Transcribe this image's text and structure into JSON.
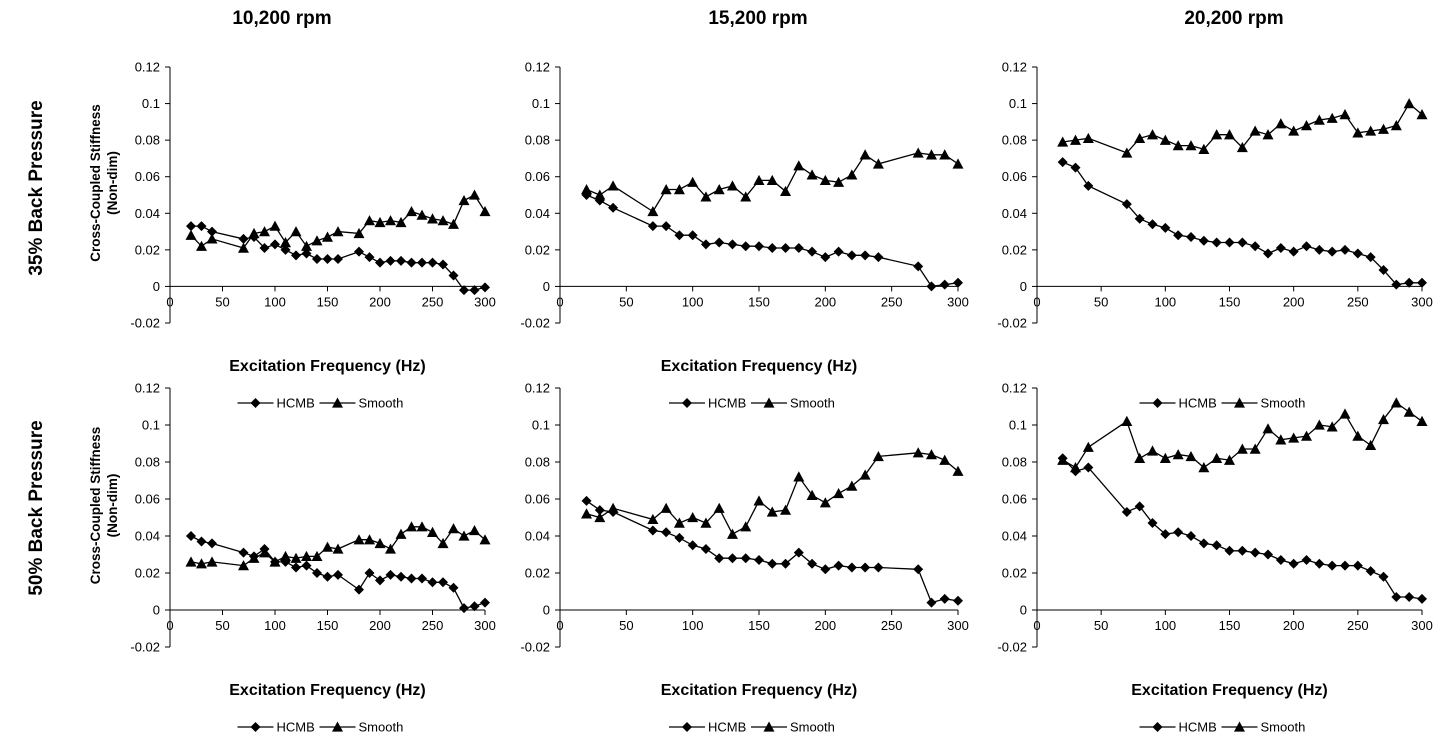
{
  "figure": {
    "column_titles": [
      "10,200 rpm",
      "15,200 rpm",
      "20,200 rpm"
    ],
    "row_titles": [
      "35% Back Pressure",
      "50% Back Pressure"
    ],
    "ylabel_line1": "Cross-Coupled Stiffness",
    "ylabel_line2": "(Non-dim)",
    "xlabel": "Excitation Frequency (Hz)"
  },
  "chart_data": [
    {
      "type": "line",
      "row": "35% Back Pressure",
      "column": "10,200 rpm",
      "ylim": [
        -0.02,
        0.12
      ],
      "yticks": [
        "0.12",
        "0.1",
        "0.08",
        "0.06",
        "0.04",
        "0.02",
        "0",
        "-0.02"
      ],
      "xlim": [
        0,
        300
      ],
      "xticks": [
        "0",
        "50",
        "100",
        "150",
        "200",
        "250",
        "300"
      ],
      "show_ylabel": true,
      "show_xlabel": true,
      "legend": "bottom",
      "series": [
        {
          "name": "HCMB",
          "marker": "diamond",
          "x": [
            20,
            30,
            40,
            70,
            80,
            90,
            100,
            110,
            120,
            130,
            140,
            150,
            160,
            180,
            190,
            200,
            210,
            220,
            230,
            240,
            250,
            260,
            270,
            280,
            290,
            300
          ],
          "y": [
            0.033,
            0.033,
            0.03,
            0.026,
            0.027,
            0.021,
            0.023,
            0.02,
            0.017,
            0.018,
            0.015,
            0.015,
            0.015,
            0.019,
            0.016,
            0.013,
            0.014,
            0.014,
            0.013,
            0.013,
            0.013,
            0.012,
            0.006,
            -0.002,
            -0.002,
            -0.0005
          ]
        },
        {
          "name": "Smooth",
          "marker": "triangle",
          "x": [
            20,
            30,
            40,
            70,
            80,
            90,
            100,
            110,
            120,
            130,
            140,
            150,
            160,
            180,
            190,
            200,
            210,
            220,
            230,
            240,
            250,
            260,
            270,
            280,
            290,
            300
          ],
          "y": [
            0.028,
            0.022,
            0.026,
            0.021,
            0.029,
            0.03,
            0.033,
            0.024,
            0.03,
            0.022,
            0.025,
            0.027,
            0.03,
            0.029,
            0.036,
            0.035,
            0.036,
            0.035,
            0.041,
            0.039,
            0.037,
            0.036,
            0.034,
            0.047,
            0.05,
            0.041
          ]
        }
      ]
    },
    {
      "type": "line",
      "row": "35% Back Pressure",
      "column": "15,200 rpm",
      "ylim": [
        -0.02,
        0.12
      ],
      "yticks": [
        "0.12",
        "0.1",
        "0.08",
        "0.06",
        "0.04",
        "0.02",
        "0",
        "-0.02"
      ],
      "xlim": [
        0,
        300
      ],
      "xticks": [
        "0",
        "50",
        "100",
        "150",
        "200",
        "250",
        "300"
      ],
      "show_ylabel": false,
      "show_xlabel": true,
      "legend": "bottom",
      "series": [
        {
          "name": "HCMB",
          "marker": "diamond",
          "x": [
            20,
            30,
            40,
            70,
            80,
            90,
            100,
            110,
            120,
            130,
            140,
            150,
            160,
            170,
            180,
            190,
            200,
            210,
            220,
            230,
            240,
            270,
            280,
            290,
            300
          ],
          "y": [
            0.05,
            0.047,
            0.043,
            0.033,
            0.033,
            0.028,
            0.028,
            0.023,
            0.024,
            0.023,
            0.022,
            0.022,
            0.021,
            0.021,
            0.021,
            0.019,
            0.016,
            0.019,
            0.017,
            0.017,
            0.016,
            0.011,
            0.0,
            0.001,
            0.002
          ]
        },
        {
          "name": "Smooth",
          "marker": "triangle",
          "x": [
            20,
            30,
            40,
            70,
            80,
            90,
            100,
            110,
            120,
            130,
            140,
            150,
            160,
            170,
            180,
            190,
            200,
            210,
            220,
            230,
            240,
            270,
            280,
            290,
            300
          ],
          "y": [
            0.053,
            0.05,
            0.055,
            0.041,
            0.053,
            0.053,
            0.057,
            0.049,
            0.053,
            0.055,
            0.049,
            0.058,
            0.058,
            0.052,
            0.066,
            0.061,
            0.058,
            0.057,
            0.061,
            0.072,
            0.067,
            0.073,
            0.072,
            0.072,
            0.067
          ]
        }
      ]
    },
    {
      "type": "line",
      "row": "35% Back Pressure",
      "column": "20,200 rpm",
      "ylim": [
        -0.02,
        0.12
      ],
      "yticks": [
        "0.12",
        "0.1",
        "0.08",
        "0.06",
        "0.04",
        "0.02",
        "0",
        "-0.02"
      ],
      "xlim": [
        0,
        300
      ],
      "xticks": [
        "0",
        "50",
        "100",
        "150",
        "200",
        "250",
        "300"
      ],
      "show_ylabel": false,
      "show_xlabel": false,
      "legend": "bottom",
      "series": [
        {
          "name": "HCMB",
          "marker": "diamond",
          "x": [
            20,
            30,
            40,
            70,
            80,
            90,
            100,
            110,
            120,
            130,
            140,
            150,
            160,
            170,
            180,
            190,
            200,
            210,
            220,
            230,
            240,
            250,
            260,
            270,
            280,
            290,
            300
          ],
          "y": [
            0.068,
            0.065,
            0.055,
            0.045,
            0.037,
            0.034,
            0.032,
            0.028,
            0.027,
            0.025,
            0.024,
            0.024,
            0.024,
            0.022,
            0.018,
            0.021,
            0.019,
            0.022,
            0.02,
            0.019,
            0.02,
            0.018,
            0.016,
            0.009,
            0.001,
            0.002,
            0.002
          ]
        },
        {
          "name": "Smooth",
          "marker": "triangle",
          "x": [
            20,
            30,
            40,
            70,
            80,
            90,
            100,
            110,
            120,
            130,
            140,
            150,
            160,
            170,
            180,
            190,
            200,
            210,
            220,
            230,
            240,
            250,
            260,
            270,
            280,
            290,
            300
          ],
          "y": [
            0.079,
            0.08,
            0.081,
            0.073,
            0.081,
            0.083,
            0.08,
            0.077,
            0.077,
            0.075,
            0.083,
            0.083,
            0.076,
            0.085,
            0.083,
            0.089,
            0.085,
            0.088,
            0.091,
            0.092,
            0.094,
            0.084,
            0.085,
            0.086,
            0.088,
            0.1,
            0.094
          ]
        }
      ]
    },
    {
      "type": "line",
      "row": "50% Back Pressure",
      "column": "10,200 rpm",
      "ylim": [
        -0.02,
        0.12
      ],
      "yticks": [
        "0.12",
        "0.1",
        "0.08",
        "0.06",
        "0.04",
        "0.02",
        "0",
        "-0.02"
      ],
      "xlim": [
        0,
        300
      ],
      "xticks": [
        "0",
        "50",
        "100",
        "150",
        "200",
        "250",
        "300"
      ],
      "show_ylabel": true,
      "show_xlabel": true,
      "legend": "bottom",
      "series": [
        {
          "name": "HCMB",
          "marker": "diamond",
          "x": [
            20,
            30,
            40,
            70,
            80,
            90,
            100,
            110,
            120,
            130,
            140,
            150,
            160,
            180,
            190,
            200,
            210,
            220,
            230,
            240,
            250,
            260,
            270,
            280,
            290,
            300
          ],
          "y": [
            0.04,
            0.037,
            0.036,
            0.031,
            0.029,
            0.033,
            0.026,
            0.026,
            0.023,
            0.024,
            0.02,
            0.018,
            0.019,
            0.011,
            0.02,
            0.016,
            0.019,
            0.018,
            0.017,
            0.017,
            0.015,
            0.015,
            0.012,
            0.001,
            0.002,
            0.004
          ]
        },
        {
          "name": "Smooth",
          "marker": "triangle",
          "x": [
            20,
            30,
            40,
            70,
            80,
            90,
            100,
            110,
            120,
            130,
            140,
            150,
            160,
            180,
            190,
            200,
            210,
            220,
            230,
            240,
            250,
            260,
            270,
            280,
            290,
            300
          ],
          "y": [
            0.026,
            0.025,
            0.026,
            0.024,
            0.028,
            0.031,
            0.026,
            0.029,
            0.028,
            0.029,
            0.029,
            0.034,
            0.033,
            0.038,
            0.038,
            0.036,
            0.033,
            0.041,
            0.045,
            0.045,
            0.042,
            0.036,
            0.044,
            0.04,
            0.043,
            0.038
          ]
        }
      ]
    },
    {
      "type": "line",
      "row": "50% Back Pressure",
      "column": "15,200 rpm",
      "ylim": [
        -0.02,
        0.12
      ],
      "yticks": [
        "0.12",
        "0.1",
        "0.08",
        "0.06",
        "0.04",
        "0.02",
        "0",
        "-0.02"
      ],
      "xlim": [
        0,
        300
      ],
      "xticks": [
        "0",
        "50",
        "100",
        "150",
        "200",
        "250",
        "300"
      ],
      "show_ylabel": false,
      "show_xlabel": true,
      "legend": "bottom",
      "series": [
        {
          "name": "HCMB",
          "marker": "diamond",
          "x": [
            20,
            30,
            40,
            70,
            80,
            90,
            100,
            110,
            120,
            130,
            140,
            150,
            160,
            170,
            180,
            190,
            200,
            210,
            220,
            230,
            240,
            270,
            280,
            290,
            300
          ],
          "y": [
            0.059,
            0.054,
            0.053,
            0.043,
            0.042,
            0.039,
            0.035,
            0.033,
            0.028,
            0.028,
            0.028,
            0.027,
            0.025,
            0.025,
            0.031,
            0.025,
            0.022,
            0.024,
            0.023,
            0.023,
            0.023,
            0.022,
            0.004,
            0.006,
            0.005
          ]
        },
        {
          "name": "Smooth",
          "marker": "triangle",
          "x": [
            20,
            30,
            40,
            70,
            80,
            90,
            100,
            110,
            120,
            130,
            140,
            150,
            160,
            170,
            180,
            190,
            200,
            210,
            220,
            230,
            240,
            270,
            280,
            290,
            300
          ],
          "y": [
            0.052,
            0.05,
            0.055,
            0.049,
            0.055,
            0.047,
            0.05,
            0.047,
            0.055,
            0.041,
            0.045,
            0.059,
            0.053,
            0.054,
            0.072,
            0.062,
            0.058,
            0.063,
            0.067,
            0.073,
            0.083,
            0.085,
            0.084,
            0.081,
            0.075
          ]
        }
      ]
    },
    {
      "type": "line",
      "row": "50% Back Pressure",
      "column": "20,200 rpm",
      "ylim": [
        -0.02,
        0.12
      ],
      "yticks": [
        "0.12",
        "0.1",
        "0.08",
        "0.06",
        "0.04",
        "0.02",
        "0",
        "-0.02"
      ],
      "xlim": [
        0,
        300
      ],
      "xticks": [
        "0",
        "50",
        "100",
        "150",
        "200",
        "250",
        "300"
      ],
      "show_ylabel": false,
      "show_xlabel": true,
      "legend": "bottom",
      "series": [
        {
          "name": "HCMB",
          "marker": "diamond",
          "x": [
            20,
            30,
            40,
            70,
            80,
            90,
            100,
            110,
            120,
            130,
            140,
            150,
            160,
            170,
            180,
            190,
            200,
            210,
            220,
            230,
            240,
            250,
            260,
            270,
            280,
            290,
            300
          ],
          "y": [
            0.082,
            0.075,
            0.077,
            0.053,
            0.056,
            0.047,
            0.041,
            0.042,
            0.04,
            0.036,
            0.035,
            0.032,
            0.032,
            0.031,
            0.03,
            0.027,
            0.025,
            0.027,
            0.025,
            0.024,
            0.024,
            0.024,
            0.021,
            0.018,
            0.007,
            0.007,
            0.006
          ]
        },
        {
          "name": "Smooth",
          "marker": "triangle",
          "x": [
            20,
            30,
            40,
            70,
            80,
            90,
            100,
            110,
            120,
            130,
            140,
            150,
            160,
            170,
            180,
            190,
            200,
            210,
            220,
            230,
            240,
            250,
            260,
            270,
            280,
            290,
            300
          ],
          "y": [
            0.081,
            0.077,
            0.088,
            0.102,
            0.082,
            0.086,
            0.082,
            0.084,
            0.083,
            0.077,
            0.082,
            0.081,
            0.087,
            0.087,
            0.098,
            0.092,
            0.093,
            0.094,
            0.1,
            0.099,
            0.106,
            0.094,
            0.089,
            0.103,
            0.112,
            0.107,
            0.102
          ]
        }
      ]
    }
  ]
}
